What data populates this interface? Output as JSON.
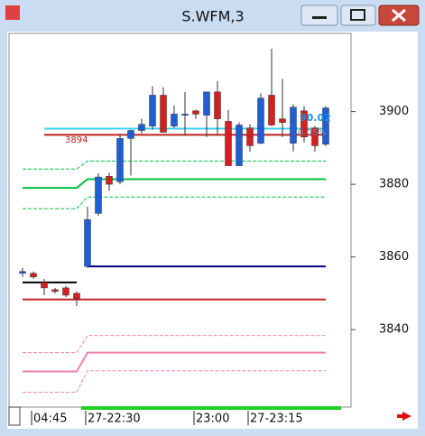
{
  "chart_data": {
    "type": "candlestick",
    "title": "S.WFM,3",
    "categories": [
      null,
      "04:45",
      null,
      null,
      null,
      null,
      "27-22:30",
      null,
      null,
      null,
      null,
      null,
      null,
      null,
      null,
      null,
      "23:00",
      null,
      null,
      null,
      null,
      "27-23:15",
      null,
      null,
      null,
      null,
      null,
      null,
      null
    ],
    "open": [
      3855.5,
      3855.5,
      3853,
      3851,
      3851.5,
      3850,
      3857.4,
      3872,
      3882.2,
      3880.7,
      3892.6,
      3894.8,
      3896,
      3904.5,
      3896,
      3899,
      3900.2,
      3899,
      3905.4,
      3897.3,
      3885.1,
      3895.5,
      3891.3,
      3904.5,
      3898,
      3891.3,
      3900.2,
      3895.5,
      3891
    ],
    "high": [
      3857,
      3856,
      3854,
      3851.5,
      3852,
      3850.5,
      3873.8,
      3883,
      3883.2,
      3893.5,
      3895,
      3898,
      3907,
      3906.7,
      3901.7,
      3905.4,
      3900.5,
      3905.4,
      3908.4,
      3900.5,
      3897,
      3896.5,
      3905,
      3917.3,
      3909,
      3902,
      3901.5,
      3896,
      3901.5
    ],
    "low": [
      3854.5,
      3854,
      3849.5,
      3850,
      3849,
      3846.5,
      3857,
      3871.3,
      3878.2,
      3880,
      3882.4,
      3894,
      3895,
      3894.3,
      3895.5,
      3893.6,
      3898,
      3893,
      3893.6,
      3885.1,
      3885,
      3889,
      3891,
      3896,
      3893,
      3889,
      3891.5,
      3889,
      3890.5
    ],
    "close": [
      3856,
      3854.5,
      3851.5,
      3850.5,
      3849.5,
      3848.5,
      3870.3,
      3882,
      3880,
      3892.6,
      3894.8,
      3896.5,
      3904.5,
      3894.3,
      3899.3,
      3899.3,
      3899.3,
      3905.4,
      3898,
      3885.1,
      3896.3,
      3890.6,
      3903.7,
      3896.3,
      3897,
      3901.2,
      3893,
      3890.6,
      3901
    ],
    "up_color": "#1f5fd6",
    "down_color": "#d42020",
    "overlays": [
      {
        "color": "#00c040",
        "style": "solid",
        "values": [
          3879,
          3879,
          3879,
          3879,
          3879,
          3879,
          3881.4,
          3881.4,
          3881.4,
          3881.4,
          3881.4,
          3881.4,
          3881.4,
          3881.4,
          3881.4,
          3881.4,
          3881.4,
          3881.4,
          3881.4,
          3881.4,
          3881.4,
          3881.4,
          3881.4,
          3881.4,
          3881.4,
          3881.4,
          3881.4,
          3881.4,
          3881.4
        ]
      },
      {
        "color": "#00c040",
        "style": "dashed",
        "values": [
          3884.2,
          3884.2,
          3884.2,
          3884.2,
          3884.2,
          3884.2,
          3886.4,
          3886.4,
          3886.4,
          3886.4,
          3886.4,
          3886.4,
          3886.4,
          3886.4,
          3886.4,
          3886.4,
          3886.4,
          3886.4,
          3886.4,
          3886.4,
          3886.4,
          3886.4,
          3886.4,
          3886.4,
          3886.4,
          3886.4,
          3886.4,
          3886.4,
          3886.4
        ]
      },
      {
        "color": "#00c040",
        "style": "dashed",
        "values": [
          3873.3,
          3873.3,
          3873.3,
          3873.3,
          3873.3,
          3873.3,
          3876.5,
          3876.5,
          3876.5,
          3876.5,
          3876.5,
          3876.5,
          3876.5,
          3876.5,
          3876.5,
          3876.5,
          3876.5,
          3876.5,
          3876.5,
          3876.5,
          3876.5,
          3876.5,
          3876.5,
          3876.5,
          3876.5,
          3876.5,
          3876.5,
          3876.5,
          3876.5
        ]
      },
      {
        "color": "#f080b0",
        "style": "solid",
        "values": [
          3828.5,
          3828.5,
          3828.5,
          3828.5,
          3828.5,
          3828.5,
          3833.7,
          3833.7,
          3833.7,
          3833.7,
          3833.7,
          3833.7,
          3833.7,
          3833.7,
          3833.7,
          3833.7,
          3833.7,
          3833.7,
          3833.7,
          3833.7,
          3833.7,
          3833.7,
          3833.7,
          3833.7,
          3833.7,
          3833.7,
          3833.7,
          3833.7,
          3833.7
        ]
      },
      {
        "color": "#f080b0",
        "style": "dashed",
        "values": [
          3833.7,
          3833.7,
          3833.7,
          3833.7,
          3833.7,
          3833.7,
          3838.4,
          3838.4,
          3838.4,
          3838.4,
          3838.4,
          3838.4,
          3838.4,
          3838.4,
          3838.4,
          3838.4,
          3838.4,
          3838.4,
          3838.4,
          3838.4,
          3838.4,
          3838.4,
          3838.4,
          3838.4,
          3838.4,
          3838.4,
          3838.4,
          3838.4,
          3838.4
        ]
      },
      {
        "color": "#f080b0",
        "style": "dashed",
        "values": [
          3822.8,
          3822.8,
          3822.8,
          3822.8,
          3822.8,
          3822.8,
          3828.7,
          3828.7,
          3828.7,
          3828.7,
          3828.7,
          3828.7,
          3828.7,
          3828.7,
          3828.7,
          3828.7,
          3828.7,
          3828.7,
          3828.7,
          3828.7,
          3828.7,
          3828.7,
          3828.7,
          3828.7,
          3828.7,
          3828.7,
          3828.7,
          3828.7,
          3828.7
        ]
      },
      {
        "color": "#000080",
        "style": "solid",
        "values": [
          null,
          null,
          null,
          null,
          null,
          null,
          3857.4,
          3857.4,
          3857.4,
          3857.4,
          3857.4,
          3857.4,
          3857.4,
          3857.4,
          3857.4,
          3857.4,
          3857.4,
          3857.4,
          3857.4,
          3857.4,
          3857.4,
          3857.4,
          3857.4,
          3857.4,
          3857.4,
          3857.4,
          3857.4,
          3857.4,
          3857.4
        ]
      },
      {
        "color": "#000000",
        "style": "solid",
        "values": [
          3853,
          3853,
          3853,
          3853,
          3853,
          3853,
          null,
          null,
          null,
          null,
          null,
          null,
          null,
          null,
          null,
          null,
          null,
          null,
          null,
          null,
          null,
          null,
          null,
          null,
          null,
          null,
          null,
          null,
          null
        ]
      },
      {
        "color": "#c02020",
        "style": "solid",
        "values": [
          3848.3,
          3848.3,
          3848.3,
          3848.3,
          3848.3,
          3848.3,
          3848.3,
          3848.3,
          3848.3,
          3848.3,
          3848.3,
          3848.3,
          3848.3,
          3848.3,
          3848.3,
          3848.3,
          3848.3,
          3848.3,
          3848.3,
          3848.3,
          3848.3,
          3848.3,
          3848.3,
          3848.3,
          3848.3,
          3848.3,
          3848.3,
          3848.3,
          3848.3
        ]
      },
      {
        "color": "#c02020",
        "style": "solid",
        "values": [
          null,
          null,
          3893.6,
          3893.6,
          3893.6,
          3893.6,
          3893.6,
          3893.6,
          3893.6,
          3893.6,
          3893.6,
          3893.6,
          3893.6,
          3893.6,
          3893.6,
          3893.6,
          3893.6,
          3893.6,
          3893.6,
          3893.6,
          3893.6,
          3893.6,
          3893.6,
          3893.6,
          3893.6,
          3893.6,
          3893.6,
          3893.6,
          3893.6
        ]
      },
      {
        "color": "#40d0f0",
        "style": "solid",
        "values": [
          null,
          null,
          3895.3,
          3895.3,
          3895.3,
          3895.3,
          3895.3,
          3895.3,
          3895.3,
          3895.3,
          3895.3,
          3895.3,
          3895.3,
          3895.3,
          3895.3,
          3895.3,
          3895.3,
          3895.3,
          3895.3,
          3895.3,
          3895.3,
          3895.3,
          3895.3,
          3895.3,
          3895.3,
          3895.3,
          3895.3,
          3895.3,
          3895.3
        ]
      }
    ],
    "annotations": [
      "3894",
      "90.02",
      "0.05%"
    ],
    "ylim": [
      3818.7,
      3921.5
    ],
    "yticks": [
      3840,
      3860,
      3880,
      3900
    ]
  }
}
